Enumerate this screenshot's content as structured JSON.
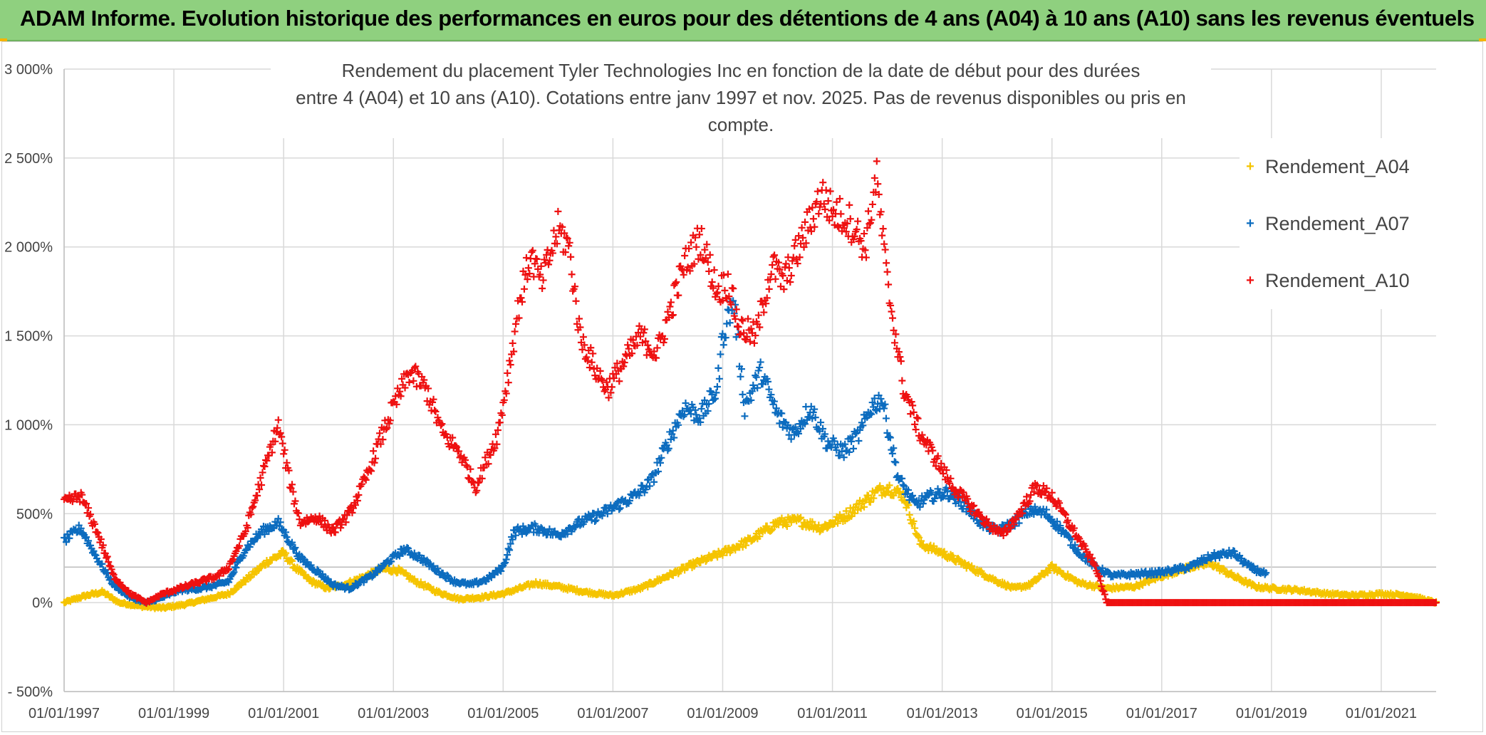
{
  "banner": {
    "title": "ADAM Informe. Evolution historique des performances en euros pour des détentions de 4 ans (A04) à 10 ans (A10) sans les revenus éventuels"
  },
  "colors": {
    "banner_bg": "#8fd07f",
    "A04": "#f5c400",
    "A07": "#0c6cbf",
    "A10": "#ee1111",
    "grid": "#d9d9d9",
    "axis_text": "#444444"
  },
  "chart_data": {
    "type": "scatter",
    "title_line1": "Rendement du placement Tyler Technologies Inc en fonction de la date de début pour des durées",
    "title_line2": "entre 4 (A04) et 10 ans (A10). Cotations entre janv 1997 et nov. 2025. Pas de revenus disponibles ou pris en compte.",
    "x_axis": {
      "type": "date",
      "range": [
        "1997-01-01",
        "2022-01-01"
      ],
      "tick_labels": [
        "01/01/1997",
        "01/01/1999",
        "01/01/2001",
        "01/01/2003",
        "01/01/2005",
        "01/01/2007",
        "01/01/2009",
        "01/01/2011",
        "01/01/2013",
        "01/01/2015",
        "01/01/2017",
        "01/01/2019",
        "01/01/2021"
      ]
    },
    "y_axis": {
      "unit": "%",
      "range": [
        -500,
        3000
      ],
      "ticks": [
        -500,
        0,
        500,
        1000,
        1500,
        2000,
        2500,
        3000
      ],
      "tick_labels": [
        "- 500%",
        "0%",
        "500%",
        "1 000%",
        "1 500%",
        "2 000%",
        "2 500%",
        "3 000%"
      ]
    },
    "grid": true,
    "legend_position": "top-right",
    "series": [
      {
        "name": "Rendement_A04",
        "marker": "+",
        "x": [
          1997.0,
          1997.4,
          1997.7,
          1998.0,
          1998.4,
          1998.8,
          1999.2,
          1999.6,
          2000.0,
          2000.4,
          2000.7,
          2001.0,
          2001.2,
          2001.5,
          2001.8,
          2002.1,
          2002.5,
          2002.8,
          2003.1,
          2003.4,
          2003.8,
          2004.2,
          2004.6,
          2005.0,
          2005.3,
          2005.6,
          2006.0,
          2006.5,
          2007.0,
          2007.5,
          2008.0,
          2008.5,
          2009.0,
          2009.5,
          2010.0,
          2010.4,
          2010.8,
          2011.2,
          2011.5,
          2011.8,
          2012.0,
          2012.3,
          2012.6,
          2013.0,
          2013.5,
          2014.0,
          2014.3,
          2014.6,
          2015.0,
          2015.5,
          2016.0,
          2016.5,
          2017.0,
          2017.5,
          2017.9,
          2018.3,
          2018.7,
          2019.0,
          2019.5,
          2020.0,
          2020.5,
          2021.0,
          2021.5,
          2022.0
        ],
        "y": [
          0,
          40,
          60,
          0,
          -20,
          -30,
          -10,
          20,
          50,
          150,
          230,
          280,
          200,
          120,
          80,
          100,
          150,
          190,
          180,
          120,
          60,
          20,
          30,
          50,
          80,
          110,
          90,
          60,
          40,
          80,
          150,
          220,
          280,
          350,
          450,
          460,
          420,
          480,
          550,
          620,
          650,
          600,
          330,
          280,
          200,
          120,
          80,
          100,
          200,
          110,
          80,
          90,
          150,
          200,
          220,
          150,
          90,
          80,
          70,
          50,
          40,
          50,
          40,
          0
        ]
      },
      {
        "name": "Rendement_A07",
        "marker": "+",
        "x": [
          1997.0,
          1997.3,
          1997.6,
          1997.9,
          1998.2,
          1998.5,
          1998.8,
          1999.1,
          1999.5,
          1999.8,
          2000.0,
          2000.3,
          2000.6,
          2000.9,
          2001.1,
          2001.3,
          2001.6,
          2001.9,
          2002.2,
          2002.6,
          2002.9,
          2003.2,
          2003.5,
          2003.8,
          2004.1,
          2004.4,
          2004.7,
          2005.0,
          2005.2,
          2005.6,
          2006.0,
          2006.4,
          2006.8,
          2007.1,
          2007.4,
          2007.7,
          2008.0,
          2008.3,
          2008.6,
          2008.9,
          2009.0,
          2009.2,
          2009.4,
          2009.7,
          2010.0,
          2010.3,
          2010.6,
          2010.9,
          2011.2,
          2011.5,
          2011.7,
          2011.9,
          2012.2,
          2012.5,
          2012.8,
          2013.1,
          2013.4,
          2013.7,
          2014.0,
          2014.3,
          2014.6,
          2014.9,
          2015.2,
          2015.5,
          2015.8,
          2016.1,
          2016.5,
          2017.0,
          2017.5,
          2017.9,
          2018.3,
          2018.6,
          2018.9
        ],
        "y": [
          350,
          420,
          250,
          100,
          30,
          0,
          30,
          70,
          80,
          100,
          120,
          300,
          400,
          450,
          350,
          250,
          180,
          100,
          80,
          150,
          230,
          300,
          250,
          180,
          120,
          100,
          130,
          200,
          400,
          420,
          380,
          450,
          500,
          550,
          600,
          680,
          900,
          1100,
          1050,
          1200,
          1500,
          1700,
          1100,
          1300,
          1050,
          950,
          1100,
          900,
          850,
          950,
          1100,
          1150,
          700,
          550,
          600,
          620,
          550,
          450,
          400,
          450,
          520,
          500,
          400,
          280,
          200,
          150,
          160,
          170,
          200,
          260,
          280,
          200,
          160
        ]
      },
      {
        "name": "Rendement_A10",
        "marker": "+",
        "x": [
          1997.0,
          1997.3,
          1997.6,
          1997.9,
          1998.2,
          1998.5,
          1998.8,
          1999.1,
          1999.5,
          1999.8,
          2000.0,
          2000.3,
          2000.6,
          2000.9,
          2001.1,
          2001.3,
          2001.6,
          2001.9,
          2002.2,
          2002.5,
          2002.8,
          2003.0,
          2003.3,
          2003.6,
          2003.9,
          2004.2,
          2004.5,
          2004.7,
          2004.9,
          2005.1,
          2005.3,
          2005.5,
          2005.7,
          2006.0,
          2006.2,
          2006.4,
          2006.7,
          2006.9,
          2007.2,
          2007.5,
          2007.8,
          2008.0,
          2008.3,
          2008.6,
          2008.9,
          2009.1,
          2009.3,
          2009.6,
          2009.9,
          2010.1,
          2010.4,
          2010.6,
          2010.8,
          2011.0,
          2011.3,
          2011.6,
          2011.8,
          2012.0,
          2012.3,
          2012.6,
          2012.9,
          2013.2,
          2013.5,
          2013.8,
          2014.1,
          2014.4,
          2014.7,
          2015.0,
          2015.3,
          2015.6,
          2015.8,
          2016.0
        ],
        "y": [
          560,
          600,
          400,
          150,
          50,
          0,
          50,
          80,
          120,
          150,
          200,
          400,
          700,
          1000,
          700,
          450,
          480,
          400,
          500,
          700,
          950,
          1100,
          1300,
          1200,
          950,
          850,
          650,
          800,
          950,
          1300,
          1700,
          1950,
          1800,
          2100,
          2000,
          1500,
          1300,
          1200,
          1350,
          1500,
          1400,
          1600,
          1900,
          2050,
          1750,
          1800,
          1550,
          1500,
          1900,
          1800,
          2000,
          2150,
          2300,
          2200,
          2150,
          2000,
          2400,
          1800,
          1200,
          950,
          800,
          650,
          550,
          450,
          380,
          500,
          650,
          600,
          450,
          300,
          200,
          0
        ]
      }
    ],
    "A10_flat_segment": {
      "x_start": 2016.0,
      "x_end": 2022.0,
      "y": 0
    }
  }
}
